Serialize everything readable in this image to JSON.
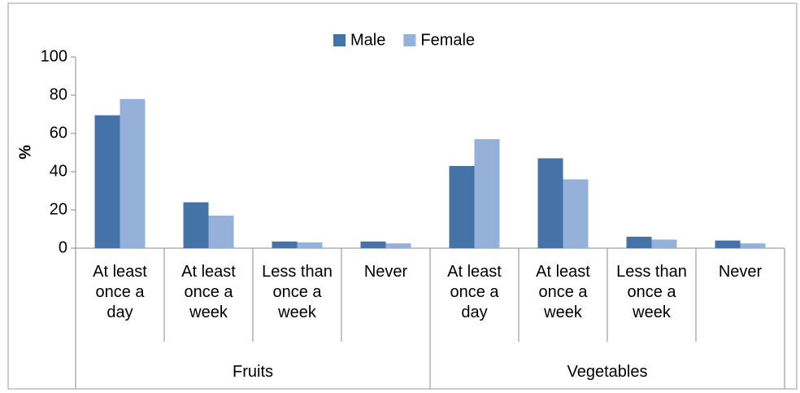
{
  "chart_data": {
    "type": "bar",
    "y_label": "%",
    "categories": [
      "At least\nonce a\nday",
      "At least\nonce a\nweek",
      "Less than\nonce a\nweek",
      "Never",
      "At least\nonce a\nday",
      "At least\nonce a\nweek",
      "Less than\nonce a\nweek",
      "Never"
    ],
    "groups": [
      "Fruits",
      "Vegetables"
    ],
    "series": [
      {
        "name": "Male",
        "color": "#4572a7",
        "values": [
          69.5,
          24,
          3.5,
          3.5,
          43,
          47,
          6,
          4
        ]
      },
      {
        "name": "Female",
        "color": "#95b0d9",
        "values": [
          78,
          17,
          3,
          2.5,
          57,
          36,
          4.5,
          2.5
        ]
      }
    ],
    "ylim": [
      0,
      100
    ],
    "yticks": [
      0,
      20,
      40,
      60,
      80,
      100
    ],
    "legend": "top"
  }
}
